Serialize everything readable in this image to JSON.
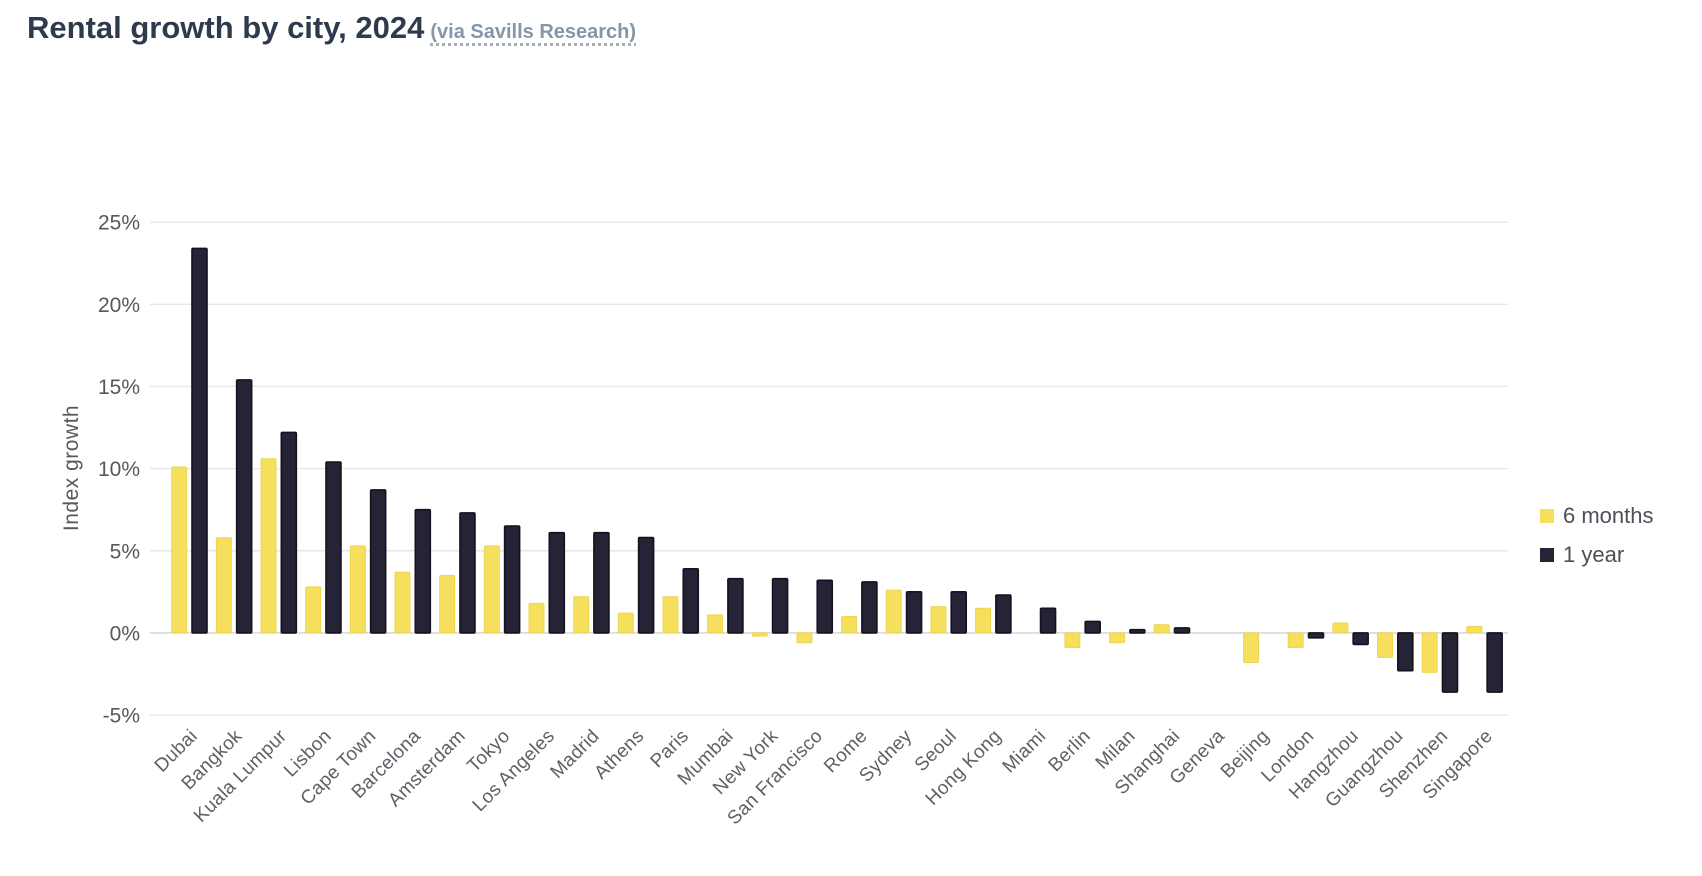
{
  "header": {
    "title": "Rental growth by city, 2024",
    "source": "(via Savills Research)"
  },
  "chart_data": {
    "type": "bar",
    "title": "Rental growth by city, 2024",
    "source": "via Savills Research",
    "ylabel": "Index growth",
    "ylim": [
      -5,
      25
    ],
    "yticks": [
      25,
      20,
      15,
      10,
      5,
      0,
      -5
    ],
    "ytick_labels": [
      "25%",
      "20%",
      "15%",
      "10%",
      "5%",
      "0%",
      "-5%"
    ],
    "grid": true,
    "legend_position": "right",
    "categories": [
      "Dubai",
      "Bangkok",
      "Kuala Lumpur",
      "Lisbon",
      "Cape Town",
      "Barcelona",
      "Amsterdam",
      "Tokyo",
      "Los Angeles",
      "Madrid",
      "Athens",
      "Paris",
      "Mumbai",
      "New York",
      "San Francisco",
      "Rome",
      "Sydney",
      "Seoul",
      "Hong Kong",
      "Miami",
      "Berlin",
      "Milan",
      "Shanghai",
      "Geneva",
      "Beijing",
      "London",
      "Hangzhou",
      "Guangzhou",
      "Shenzhen",
      "Singapore"
    ],
    "series": [
      {
        "name": "6 months",
        "color": "#F5DF5D",
        "values": [
          10.1,
          5.8,
          10.6,
          2.8,
          5.3,
          3.7,
          3.5,
          5.3,
          1.8,
          2.2,
          1.2,
          2.2,
          1.1,
          -0.2,
          -0.6,
          1.0,
          2.6,
          1.6,
          1.5,
          0,
          -0.9,
          -0.6,
          0.5,
          0,
          -1.8,
          -0.9,
          0.6,
          -1.5,
          -2.4,
          0.4
        ]
      },
      {
        "name": "1 year",
        "color": "#262337",
        "values": [
          23.4,
          15.4,
          12.2,
          10.4,
          8.7,
          7.5,
          7.3,
          6.5,
          6.1,
          6.1,
          5.8,
          3.9,
          3.3,
          3.3,
          3.2,
          3.1,
          2.5,
          2.5,
          2.3,
          1.5,
          0.7,
          0.2,
          0.3,
          0,
          0,
          -0.3,
          -0.7,
          -2.3,
          -3.6,
          -3.6
        ]
      }
    ]
  },
  "colors": {
    "series_6_months": "#F5DF5D",
    "series_1_year": "#262337",
    "gridline": "#e7e7e7",
    "zero_line": "#d9d9d9",
    "title_text": "#2d3b4d",
    "source_link": "#8496a7",
    "axis_text": "#54595e"
  }
}
